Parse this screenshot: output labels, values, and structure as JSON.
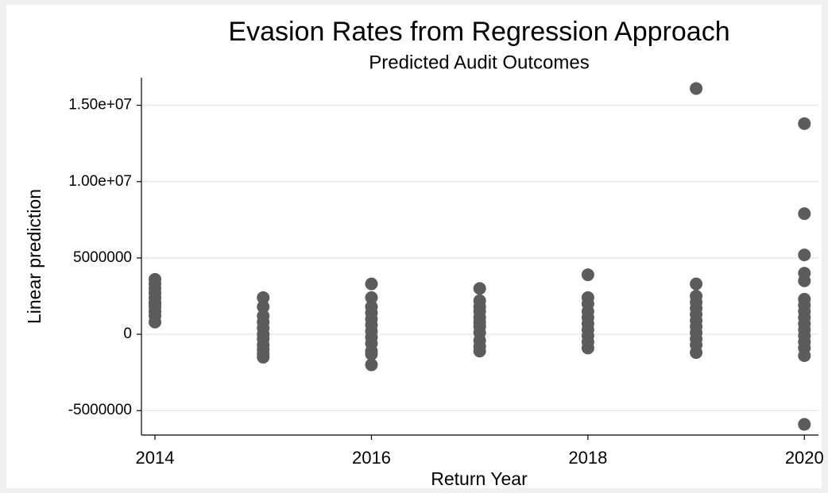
{
  "chart_data": {
    "type": "scatter",
    "title": "Evasion Rates from Regression Approach",
    "subtitle": "Predicted Audit Outcomes",
    "x_label": "Return Year",
    "y_label": "Linear prediction",
    "color": "#5c5c5c",
    "x": [
      2014,
      2014,
      2014,
      2014,
      2014,
      2014,
      2014,
      2014,
      2014,
      2014,
      2014,
      2015,
      2015,
      2015,
      2015,
      2015,
      2015,
      2015,
      2015,
      2015,
      2015,
      2015,
      2016,
      2016,
      2016,
      2016,
      2016,
      2016,
      2016,
      2016,
      2016,
      2016,
      2016,
      2016,
      2017,
      2017,
      2017,
      2017,
      2017,
      2017,
      2017,
      2017,
      2017,
      2017,
      2017,
      2018,
      2018,
      2018,
      2018,
      2018,
      2018,
      2018,
      2018,
      2018,
      2018,
      2019,
      2019,
      2019,
      2019,
      2019,
      2019,
      2019,
      2019,
      2019,
      2019,
      2019,
      2019,
      2020,
      2020,
      2020,
      2020,
      2020,
      2020,
      2020,
      2020,
      2020,
      2020,
      2020,
      2020,
      2020,
      2020,
      2020,
      2020
    ],
    "y": [
      3600000,
      3300000,
      3000000,
      2700000,
      2400000,
      2100000,
      2000000,
      1800000,
      1500000,
      1200000,
      800000,
      2400000,
      1800000,
      1200000,
      800000,
      400000,
      0,
      -300000,
      -700000,
      -1000000,
      -1300000,
      -1500000,
      3300000,
      2400000,
      1800000,
      1400000,
      1000000,
      600000,
      200000,
      -200000,
      -600000,
      -1100000,
      -1300000,
      -2000000,
      3000000,
      2200000,
      1800000,
      1500000,
      1100000,
      800000,
      500000,
      100000,
      -400000,
      -800000,
      -1100000,
      3900000,
      2400000,
      2000000,
      1500000,
      1100000,
      700000,
      300000,
      -100000,
      -500000,
      -900000,
      16100000,
      3300000,
      2500000,
      2100000,
      1700000,
      1300000,
      900000,
      500000,
      100000,
      -300000,
      -700000,
      -1200000,
      13800000,
      7900000,
      5200000,
      4000000,
      3500000,
      2300000,
      1900000,
      1500000,
      1100000,
      700000,
      300000,
      -100000,
      -500000,
      -900000,
      -1400000,
      -5900000
    ],
    "xlim": [
      2013.875,
      2020.13
    ],
    "ylim": [
      -6600000,
      16800000
    ],
    "xticks": [
      2014,
      2016,
      2018,
      2020
    ],
    "yticks": [
      {
        "value": 15000000,
        "label": "1.50e+07"
      },
      {
        "value": 10000000,
        "label": "1.00e+07"
      },
      5000000,
      0,
      -5000000
    ],
    "grid": true
  }
}
